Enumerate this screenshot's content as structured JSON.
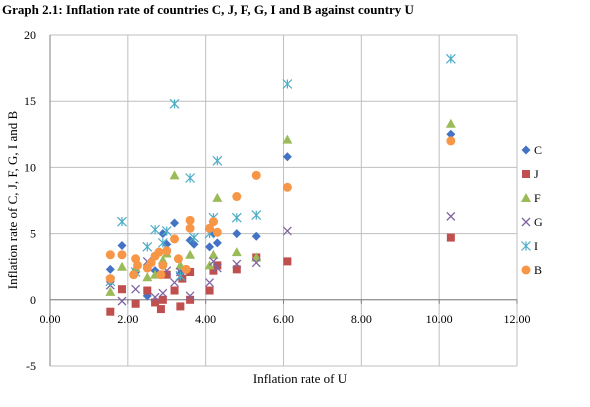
{
  "chart_data": {
    "type": "scatter",
    "title": "Graph 2.1: Inflation rate of countries C, J, F, G, I and B against country U",
    "xlabel": "Inflation rate of U",
    "ylabel": "Inflation rate of C, J, F, G, I and B",
    "xlim": [
      0,
      12
    ],
    "ylim": [
      -5,
      20
    ],
    "x_ticks": [
      "0.00",
      "2.00",
      "4.00",
      "6.00",
      "8.00",
      "10.00",
      "12.00"
    ],
    "y_ticks": [
      "-5",
      "0",
      "5",
      "10",
      "15",
      "20"
    ],
    "grid": true,
    "legend_position": "right",
    "series": [
      {
        "name": "C",
        "marker": "diamond",
        "color": "#4472C4",
        "points": [
          [
            1.55,
            2.3
          ],
          [
            1.85,
            4.1
          ],
          [
            2.2,
            2.1
          ],
          [
            2.5,
            0.3
          ],
          [
            2.7,
            2.2
          ],
          [
            2.9,
            5.0
          ],
          [
            3.0,
            4.2
          ],
          [
            3.2,
            5.8
          ],
          [
            3.35,
            2.0
          ],
          [
            3.6,
            4.5
          ],
          [
            3.7,
            4.2
          ],
          [
            4.1,
            4.0
          ],
          [
            4.2,
            5.0
          ],
          [
            4.3,
            4.3
          ],
          [
            4.8,
            5.0
          ],
          [
            5.3,
            4.8
          ],
          [
            6.1,
            10.8
          ],
          [
            10.3,
            12.5
          ]
        ]
      },
      {
        "name": "J",
        "marker": "square",
        "color": "#C0504D",
        "points": [
          [
            1.55,
            -0.9
          ],
          [
            1.85,
            0.8
          ],
          [
            2.2,
            -0.3
          ],
          [
            2.5,
            0.7
          ],
          [
            2.7,
            -0.2
          ],
          [
            2.85,
            -0.7
          ],
          [
            2.9,
            0.0
          ],
          [
            3.0,
            1.9
          ],
          [
            3.2,
            0.7
          ],
          [
            3.35,
            -0.5
          ],
          [
            3.4,
            1.6
          ],
          [
            3.6,
            2.1
          ],
          [
            3.6,
            0.0
          ],
          [
            4.1,
            0.7
          ],
          [
            4.2,
            2.2
          ],
          [
            4.3,
            2.6
          ],
          [
            4.8,
            2.3
          ],
          [
            5.3,
            3.2
          ],
          [
            6.1,
            2.9
          ],
          [
            10.3,
            4.7
          ]
        ]
      },
      {
        "name": "F",
        "marker": "triangle",
        "color": "#9BBB59",
        "points": [
          [
            1.55,
            0.6
          ],
          [
            1.85,
            2.5
          ],
          [
            2.2,
            2.4
          ],
          [
            2.5,
            1.7
          ],
          [
            2.7,
            1.9
          ],
          [
            2.9,
            3.0
          ],
          [
            3.0,
            3.5
          ],
          [
            3.2,
            9.4
          ],
          [
            3.35,
            2.6
          ],
          [
            3.6,
            3.4
          ],
          [
            4.1,
            2.6
          ],
          [
            4.2,
            3.4
          ],
          [
            4.3,
            7.7
          ],
          [
            4.8,
            3.6
          ],
          [
            5.3,
            3.2
          ],
          [
            6.1,
            12.1
          ],
          [
            10.3,
            13.3
          ]
        ]
      },
      {
        "name": "G",
        "marker": "x",
        "color": "#8064A2",
        "points": [
          [
            1.55,
            1.1
          ],
          [
            1.85,
            -0.1
          ],
          [
            2.2,
            0.8
          ],
          [
            2.5,
            2.9
          ],
          [
            2.7,
            0.2
          ],
          [
            2.9,
            0.5
          ],
          [
            3.0,
            2.2
          ],
          [
            3.2,
            1.3
          ],
          [
            3.35,
            2.1
          ],
          [
            3.6,
            0.3
          ],
          [
            4.1,
            1.3
          ],
          [
            4.2,
            2.9
          ],
          [
            4.3,
            2.4
          ],
          [
            4.8,
            2.7
          ],
          [
            5.3,
            2.8
          ],
          [
            6.1,
            5.2
          ],
          [
            10.3,
            6.3
          ]
        ]
      },
      {
        "name": "I",
        "marker": "star",
        "color": "#4BACC6",
        "points": [
          [
            1.55,
            1.4
          ],
          [
            1.85,
            5.9
          ],
          [
            2.2,
            2.1
          ],
          [
            2.5,
            4.0
          ],
          [
            2.7,
            5.3
          ],
          [
            2.9,
            4.3
          ],
          [
            3.0,
            5.2
          ],
          [
            3.2,
            14.8
          ],
          [
            3.35,
            1.8
          ],
          [
            3.6,
            9.2
          ],
          [
            3.7,
            4.7
          ],
          [
            4.1,
            5.0
          ],
          [
            4.2,
            6.2
          ],
          [
            4.3,
            10.5
          ],
          [
            4.8,
            6.2
          ],
          [
            5.3,
            6.4
          ],
          [
            6.1,
            16.3
          ],
          [
            10.3,
            18.2
          ]
        ]
      },
      {
        "name": "B",
        "marker": "circle",
        "color": "#F79646",
        "points": [
          [
            1.55,
            1.6
          ],
          [
            1.55,
            3.4
          ],
          [
            1.85,
            3.4
          ],
          [
            2.15,
            1.9
          ],
          [
            2.2,
            3.1
          ],
          [
            2.25,
            2.6
          ],
          [
            2.5,
            2.4
          ],
          [
            2.6,
            2.8
          ],
          [
            2.7,
            3.3
          ],
          [
            2.8,
            3.6
          ],
          [
            2.85,
            1.9
          ],
          [
            2.9,
            2.6
          ],
          [
            3.0,
            3.7
          ],
          [
            3.2,
            4.6
          ],
          [
            3.3,
            3.1
          ],
          [
            3.5,
            2.3
          ],
          [
            3.6,
            5.4
          ],
          [
            3.6,
            6.0
          ],
          [
            4.1,
            5.4
          ],
          [
            4.2,
            5.9
          ],
          [
            4.3,
            5.1
          ],
          [
            4.8,
            7.8
          ],
          [
            5.3,
            9.4
          ],
          [
            6.1,
            8.5
          ],
          [
            10.3,
            12.0
          ]
        ]
      }
    ]
  }
}
